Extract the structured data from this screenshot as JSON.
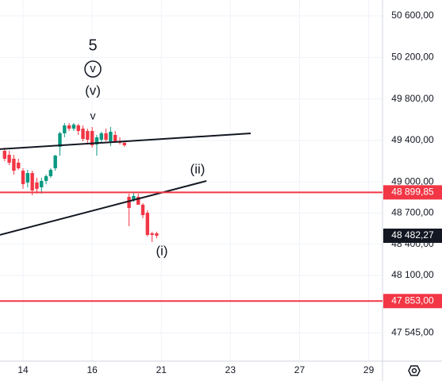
{
  "chart_data": {
    "type": "candlestick",
    "x": [
      1,
      2,
      3,
      4,
      5,
      6,
      7,
      8,
      9,
      10,
      11,
      12,
      13,
      14,
      15,
      16,
      17,
      18,
      19,
      20,
      21,
      22,
      23,
      24,
      25,
      26,
      27,
      28,
      29,
      30,
      31,
      32,
      33,
      34
    ],
    "open": [
      49300,
      49262,
      49224,
      49186,
      49109,
      48995,
      49086,
      48995,
      48949,
      49010,
      49056,
      49132,
      49339,
      49469,
      49545,
      49514,
      49545,
      49514,
      49491,
      49491,
      49361,
      49407,
      49469,
      49392,
      49453,
      49392,
      49377,
      48857,
      48826,
      48857,
      48781,
      48704,
      48505,
      48505
    ],
    "high": [
      49331,
      49300,
      49262,
      49224,
      49132,
      49117,
      49109,
      49040,
      49040,
      49071,
      49132,
      49262,
      49484,
      49568,
      49568,
      49568,
      49560,
      49545,
      49514,
      49530,
      49453,
      49484,
      49514,
      49530,
      49491,
      49430,
      49392,
      48888,
      48903,
      48888,
      48796,
      48727,
      48521,
      48521
    ],
    "low": [
      49201,
      49163,
      49071,
      49117,
      48934,
      48949,
      48872,
      48888,
      48888,
      48979,
      49040,
      49109,
      49254,
      49430,
      49491,
      49491,
      49453,
      49392,
      49377,
      49331,
      49254,
      49377,
      49392,
      49346,
      49377,
      49361,
      49339,
      48574,
      48811,
      48781,
      48651,
      48474,
      48421,
      48459
    ],
    "close": [
      49224,
      49186,
      49109,
      49132,
      48979,
      49086,
      48918,
      48934,
      49010,
      49056,
      49117,
      49254,
      49469,
      49545,
      49514,
      49553,
      49491,
      49415,
      49407,
      49354,
      49430,
      49469,
      49407,
      49484,
      49392,
      49377,
      49354,
      48750,
      48865,
      48781,
      48681,
      48490,
      48490,
      48483
    ],
    "up_color": "#089981",
    "down_color": "#f23645",
    "xlim": [
      0,
      83
    ],
    "xticks": [
      {
        "value": 5,
        "label": "14"
      },
      {
        "value": 20,
        "label": "16"
      },
      {
        "value": 35,
        "label": "21"
      },
      {
        "value": 50,
        "label": "23"
      },
      {
        "value": 65,
        "label": "27"
      },
      {
        "value": 80,
        "label": "29"
      }
    ],
    "ylim": [
      47274,
      50753
    ],
    "yticks": [
      {
        "value": 50600,
        "label": "50 600,00"
      },
      {
        "value": 50200,
        "label": "50 200,00"
      },
      {
        "value": 49800,
        "label": "49 800,00"
      },
      {
        "value": 49400,
        "label": "49 400,00"
      },
      {
        "value": 49000,
        "label": "49 000,00"
      },
      {
        "value": 48700,
        "label": "48 700,00"
      },
      {
        "value": 48400,
        "label": "48 400,00"
      },
      {
        "value": 48100,
        "label": "48 100,00"
      },
      {
        "value": 47545,
        "label": "47 545,00"
      }
    ],
    "grid": true,
    "hlines": [
      {
        "value": 48899.85,
        "label": "48 899,85",
        "color": "#f23645",
        "line": true
      },
      {
        "value": 48482.27,
        "label": "48 482,27",
        "color": "#131722",
        "line": false
      },
      {
        "value": 47853,
        "label": "47 853,00",
        "color": "#f23645",
        "line": true
      }
    ],
    "trendlines": [
      {
        "x": [
          0,
          54.4
        ],
        "y": [
          49316,
          49468
        ],
        "color": "#131722"
      },
      {
        "x": [
          0,
          44.8
        ],
        "y": [
          48490,
          49010
        ],
        "color": "#131722"
      }
    ],
    "annotations": [
      "5",
      "v",
      "(v)",
      "v",
      "(ii)",
      "(i)"
    ]
  }
}
